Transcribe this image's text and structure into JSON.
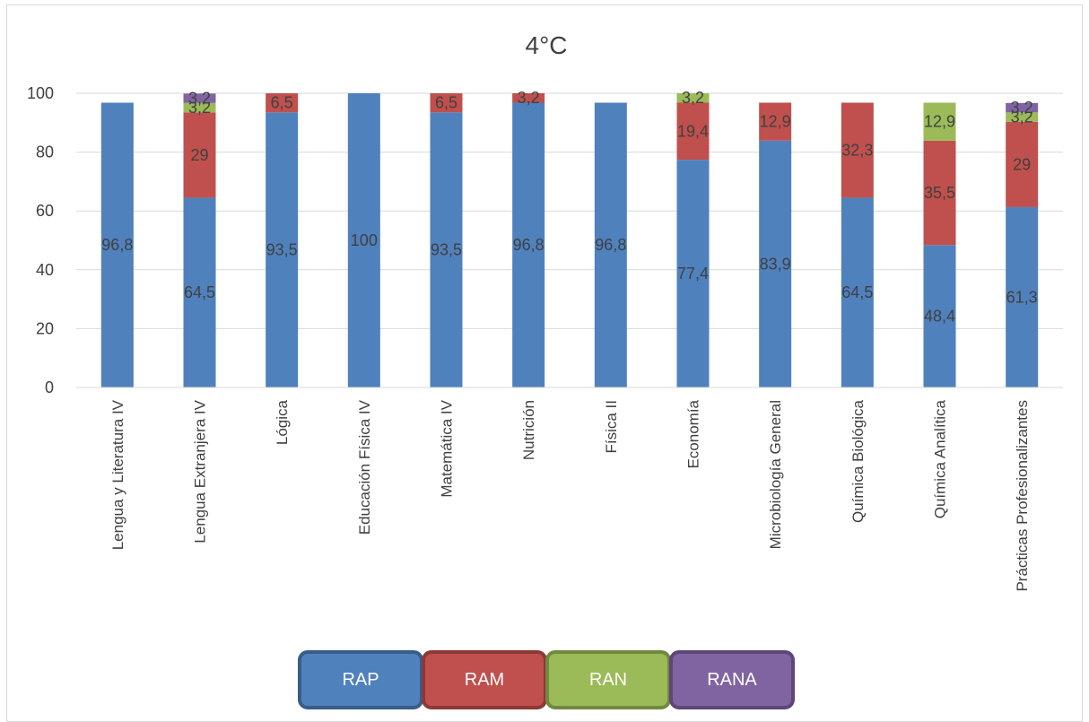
{
  "chart_data": {
    "type": "bar",
    "stacked": true,
    "title": "4°C",
    "xlabel": "",
    "ylabel": "",
    "ylim": [
      0,
      100
    ],
    "yticks": [
      0,
      20,
      40,
      60,
      80,
      100
    ],
    "grid": true,
    "legend_position": "bottom",
    "categories": [
      "Lengua y Literatura IV",
      "Lengua Extranjera IV",
      "Lógica",
      "Educación Física IV",
      "Matemática IV",
      "Nutrición",
      "Física II",
      "Economía",
      "Microbiología General",
      "Química Biológica",
      "Química Analítica",
      "Prácticas Profesionalizantes"
    ],
    "series": [
      {
        "name": "RAP",
        "color": "#4f81bd",
        "border": "#385d8a",
        "values": [
          96.8,
          64.5,
          93.5,
          100,
          93.5,
          96.8,
          96.8,
          77.4,
          83.9,
          64.5,
          48.4,
          61.3
        ]
      },
      {
        "name": "RAM",
        "color": "#c0504d",
        "border": "#8c3836",
        "values": [
          null,
          29,
          6.5,
          null,
          6.5,
          3.2,
          null,
          19.4,
          12.9,
          32.3,
          35.5,
          29
        ]
      },
      {
        "name": "RAN",
        "color": "#9bbb59",
        "border": "#71893f",
        "values": [
          null,
          3.2,
          null,
          null,
          null,
          null,
          null,
          3.2,
          null,
          null,
          12.9,
          3.2
        ]
      },
      {
        "name": "RANA",
        "color": "#8064a2",
        "border": "#5c4776",
        "values": [
          null,
          3.2,
          null,
          null,
          null,
          null,
          null,
          null,
          null,
          null,
          null,
          3.2
        ]
      }
    ],
    "data_labels": [
      [
        "96,8",
        "",
        "",
        ""
      ],
      [
        "64,5",
        "29",
        "3,2",
        "3,2"
      ],
      [
        "93,5",
        "6,5",
        "",
        ""
      ],
      [
        "100",
        "",
        "",
        ""
      ],
      [
        "93,5",
        "6,5",
        "",
        ""
      ],
      [
        "96,8",
        "3,2",
        "",
        ""
      ],
      [
        "96,8",
        "",
        "",
        ""
      ],
      [
        "77,4",
        "19,4",
        "3,2",
        ""
      ],
      [
        "83,9",
        "12,9",
        "",
        ""
      ],
      [
        "64,5",
        "32,3",
        "",
        ""
      ],
      [
        "48,4",
        "35,5",
        "12,9",
        ""
      ],
      [
        "61,3",
        "29",
        "3,2",
        "3,2"
      ]
    ]
  }
}
